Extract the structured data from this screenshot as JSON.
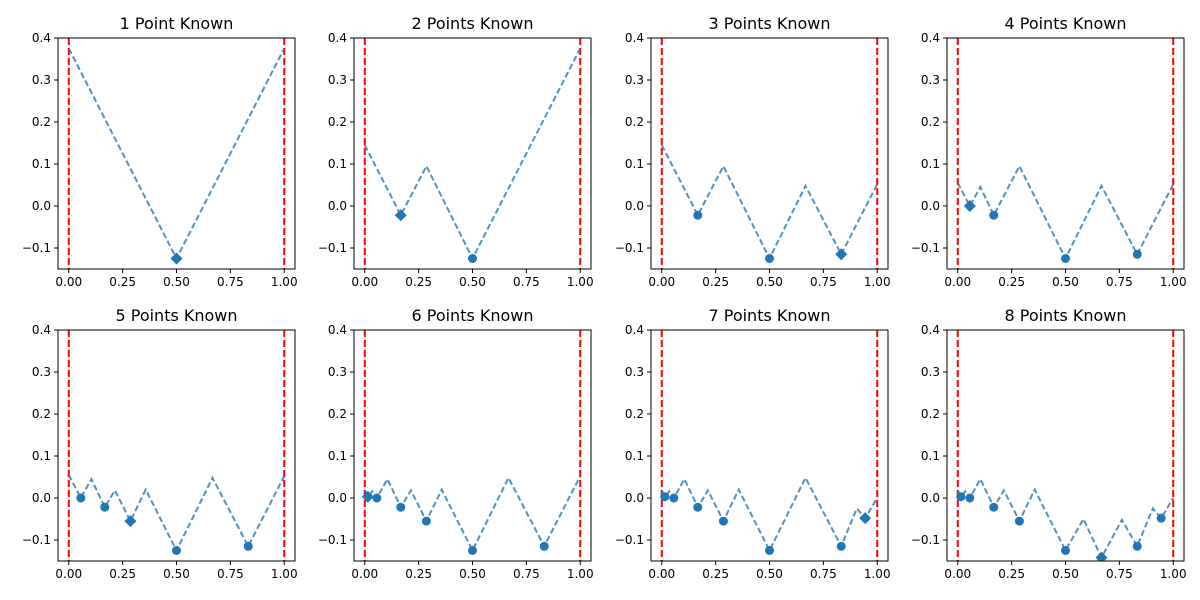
{
  "chart_data": [
    {
      "type": "line",
      "title": "1 Point Known",
      "xlim": [
        -0.05,
        1.05
      ],
      "ylim": [
        -0.15,
        0.4
      ],
      "xticks": [
        "0.00",
        "0.25",
        "0.50",
        "0.75",
        "1.00"
      ],
      "yticks": [
        "−0.1",
        "0.0",
        "0.1",
        "0.2",
        "0.3",
        "0.4"
      ],
      "vlines": [
        0,
        1
      ],
      "series": [
        {
          "style": "dashed",
          "color": "#1f77b4",
          "x": [
            0,
            0.5,
            1
          ],
          "y": [
            0.375,
            -0.125,
            0.375
          ]
        }
      ],
      "known_points": {
        "x": [],
        "y": []
      },
      "new_point": {
        "x": 0.5,
        "y": -0.125
      },
      "grid": false
    },
    {
      "type": "line",
      "title": "2 Points Known",
      "xlim": [
        -0.05,
        1.05
      ],
      "ylim": [
        -0.15,
        0.4
      ],
      "xticks": [
        "0.00",
        "0.25",
        "0.50",
        "0.75",
        "1.00"
      ],
      "yticks": [
        "−0.1",
        "0.0",
        "0.1",
        "0.2",
        "0.3",
        "0.4"
      ],
      "vlines": [
        0,
        1
      ],
      "series": [
        {
          "style": "dashed",
          "color": "#1f77b4",
          "x": [
            0,
            0.167,
            0.286,
            0.5,
            1
          ],
          "y": [
            0.145,
            -0.022,
            0.095,
            -0.125,
            0.375
          ]
        }
      ],
      "known_points": {
        "x": [
          0.5
        ],
        "y": [
          -0.125
        ]
      },
      "new_point": {
        "x": 0.167,
        "y": -0.022
      },
      "grid": false
    },
    {
      "type": "line",
      "title": "3 Points Known",
      "xlim": [
        -0.05,
        1.05
      ],
      "ylim": [
        -0.15,
        0.4
      ],
      "xticks": [
        "0.00",
        "0.25",
        "0.50",
        "0.75",
        "1.00"
      ],
      "yticks": [
        "−0.1",
        "0.0",
        "0.1",
        "0.2",
        "0.3",
        "0.4"
      ],
      "vlines": [
        0,
        1
      ],
      "series": [
        {
          "style": "dashed",
          "color": "#1f77b4",
          "x": [
            0,
            0.167,
            0.286,
            0.5,
            0.667,
            0.833,
            1
          ],
          "y": [
            0.145,
            -0.022,
            0.095,
            -0.125,
            0.048,
            -0.115,
            0.052
          ]
        }
      ],
      "known_points": {
        "x": [
          0.167,
          0.5
        ],
        "y": [
          -0.022,
          -0.125
        ]
      },
      "new_point": {
        "x": 0.833,
        "y": -0.115
      },
      "grid": false
    },
    {
      "type": "line",
      "title": "4 Points Known",
      "xlim": [
        -0.05,
        1.05
      ],
      "ylim": [
        -0.15,
        0.4
      ],
      "xticks": [
        "0.00",
        "0.25",
        "0.50",
        "0.75",
        "1.00"
      ],
      "yticks": [
        "−0.1",
        "0.0",
        "0.1",
        "0.2",
        "0.3",
        "0.4"
      ],
      "vlines": [
        0,
        1
      ],
      "series": [
        {
          "style": "dashed",
          "color": "#1f77b4",
          "x": [
            0,
            0.056,
            0.105,
            0.167,
            0.286,
            0.5,
            0.667,
            0.833,
            1
          ],
          "y": [
            0.055,
            0.0,
            0.045,
            -0.022,
            0.095,
            -0.125,
            0.048,
            -0.115,
            0.052
          ]
        }
      ],
      "known_points": {
        "x": [
          0.167,
          0.5,
          0.833
        ],
        "y": [
          -0.022,
          -0.125,
          -0.115
        ]
      },
      "new_point": {
        "x": 0.056,
        "y": 0.0
      },
      "grid": false
    },
    {
      "type": "line",
      "title": "5 Points Known",
      "xlim": [
        -0.05,
        1.05
      ],
      "ylim": [
        -0.15,
        0.4
      ],
      "xticks": [
        "0.00",
        "0.25",
        "0.50",
        "0.75",
        "1.00"
      ],
      "yticks": [
        "−0.1",
        "0.0",
        "0.1",
        "0.2",
        "0.3",
        "0.4"
      ],
      "vlines": [
        0,
        1
      ],
      "series": [
        {
          "style": "dashed",
          "color": "#1f77b4",
          "x": [
            0,
            0.056,
            0.105,
            0.167,
            0.214,
            0.286,
            0.357,
            0.5,
            0.667,
            0.833,
            1
          ],
          "y": [
            0.055,
            0.0,
            0.045,
            -0.022,
            0.018,
            -0.055,
            0.02,
            -0.125,
            0.048,
            -0.115,
            0.052
          ]
        }
      ],
      "known_points": {
        "x": [
          0.056,
          0.167,
          0.5,
          0.833
        ],
        "y": [
          0.0,
          -0.022,
          -0.125,
          -0.115
        ]
      },
      "new_point": {
        "x": 0.286,
        "y": -0.055
      },
      "grid": false
    },
    {
      "type": "line",
      "title": "6 Points Known",
      "xlim": [
        -0.05,
        1.05
      ],
      "ylim": [
        -0.15,
        0.4
      ],
      "xticks": [
        "0.00",
        "0.25",
        "0.50",
        "0.75",
        "1.00"
      ],
      "yticks": [
        "−0.1",
        "0.0",
        "0.1",
        "0.2",
        "0.3",
        "0.4"
      ],
      "vlines": [
        0,
        1
      ],
      "series": [
        {
          "style": "dashed",
          "color": "#1f77b4",
          "x": [
            0,
            0.014,
            0.035,
            0.056,
            0.105,
            0.167,
            0.214,
            0.286,
            0.357,
            0.5,
            0.667,
            0.833,
            1
          ],
          "y": [
            0.018,
            0.003,
            0.016,
            0.0,
            0.045,
            -0.022,
            0.018,
            -0.055,
            0.02,
            -0.125,
            0.048,
            -0.115,
            0.052
          ]
        }
      ],
      "known_points": {
        "x": [
          0.056,
          0.167,
          0.286,
          0.5,
          0.833
        ],
        "y": [
          0.0,
          -0.022,
          -0.055,
          -0.125,
          -0.115
        ]
      },
      "new_point": {
        "x": 0.014,
        "y": 0.003
      },
      "grid": false
    },
    {
      "type": "line",
      "title": "7 Points Known",
      "xlim": [
        -0.05,
        1.05
      ],
      "ylim": [
        -0.15,
        0.4
      ],
      "xticks": [
        "0.00",
        "0.25",
        "0.50",
        "0.75",
        "1.00"
      ],
      "yticks": [
        "−0.1",
        "0.0",
        "0.1",
        "0.2",
        "0.3",
        "0.4"
      ],
      "vlines": [
        0,
        1
      ],
      "series": [
        {
          "style": "dashed",
          "color": "#1f77b4",
          "x": [
            0,
            0.014,
            0.035,
            0.056,
            0.105,
            0.167,
            0.214,
            0.286,
            0.357,
            0.5,
            0.667,
            0.833,
            0.905,
            0.944,
            1
          ],
          "y": [
            0.018,
            0.003,
            0.016,
            0.0,
            0.045,
            -0.022,
            0.018,
            -0.055,
            0.02,
            -0.125,
            0.048,
            -0.115,
            -0.025,
            -0.048,
            0.0
          ]
        }
      ],
      "known_points": {
        "x": [
          0.014,
          0.056,
          0.167,
          0.286,
          0.5,
          0.833
        ],
        "y": [
          0.003,
          0.0,
          -0.022,
          -0.055,
          -0.125,
          -0.115
        ]
      },
      "new_point": {
        "x": 0.944,
        "y": -0.048
      },
      "grid": false
    },
    {
      "type": "line",
      "title": "8 Points Known",
      "xlim": [
        -0.05,
        1.05
      ],
      "ylim": [
        -0.15,
        0.4
      ],
      "xticks": [
        "0.00",
        "0.25",
        "0.50",
        "0.75",
        "1.00"
      ],
      "yticks": [
        "−0.1",
        "0.0",
        "0.1",
        "0.2",
        "0.3",
        "0.4"
      ],
      "vlines": [
        0,
        1
      ],
      "series": [
        {
          "style": "dashed",
          "color": "#1f77b4",
          "x": [
            0,
            0.014,
            0.035,
            0.056,
            0.105,
            0.167,
            0.214,
            0.286,
            0.357,
            0.5,
            0.583,
            0.667,
            0.762,
            0.833,
            0.905,
            0.944,
            1
          ],
          "y": [
            0.018,
            0.003,
            0.016,
            0.0,
            0.045,
            -0.022,
            0.018,
            -0.055,
            0.02,
            -0.125,
            -0.05,
            -0.142,
            -0.052,
            -0.115,
            -0.025,
            -0.048,
            0.0
          ]
        }
      ],
      "known_points": {
        "x": [
          0.014,
          0.056,
          0.167,
          0.286,
          0.5,
          0.833,
          0.944
        ],
        "y": [
          0.003,
          0.0,
          -0.022,
          -0.055,
          -0.125,
          -0.115,
          -0.048
        ]
      },
      "new_point": {
        "x": 0.667,
        "y": -0.142
      },
      "grid": false
    }
  ],
  "colors": {
    "line": "#1f77b4",
    "marker": "#1f77b4",
    "vline": "#ff0000",
    "axis": "#000000"
  }
}
